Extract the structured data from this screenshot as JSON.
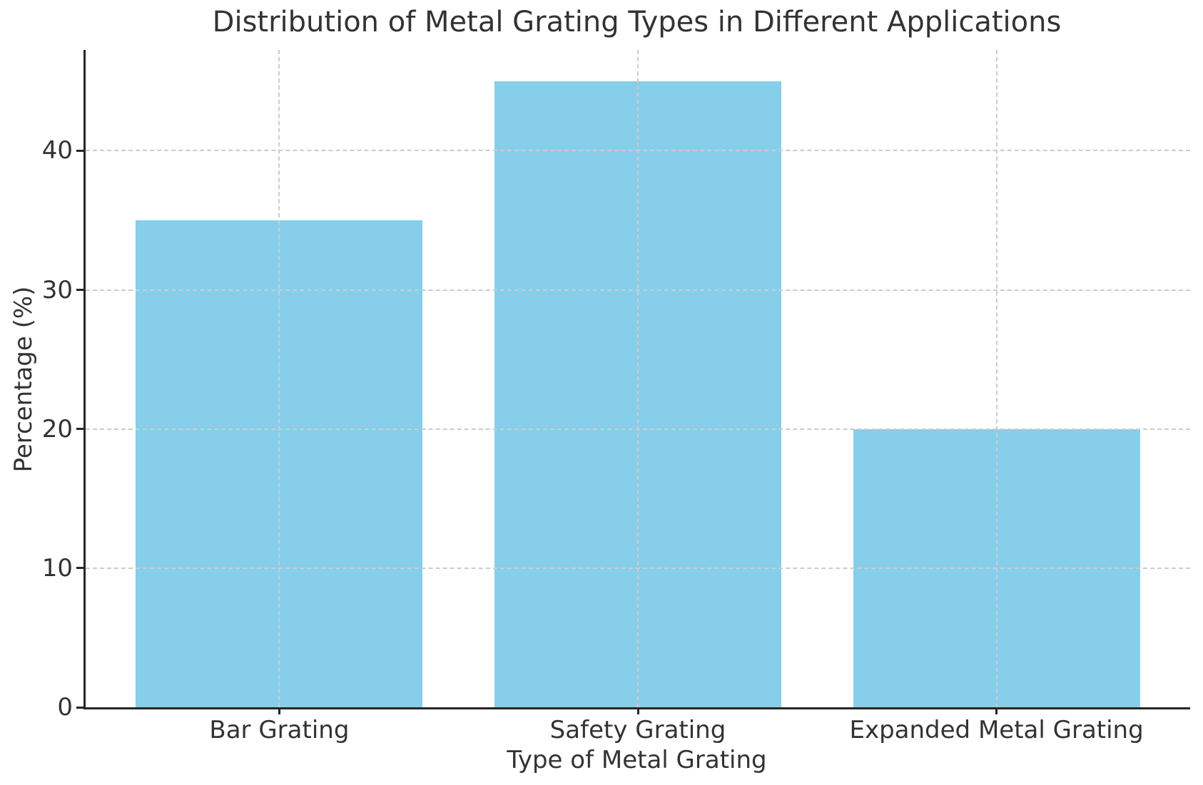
{
  "chart_data": {
    "type": "bar",
    "title": "Distribution of Metal Grating Types in Different Applications",
    "categories": [
      "Bar Grating",
      "Safety Grating",
      "Expanded Metal Grating"
    ],
    "values": [
      35,
      45,
      20
    ],
    "xlabel": "Type of Metal Grating",
    "ylabel": "Percentage (%)",
    "ylim": [
      0,
      47.25
    ],
    "xlim": [
      -0.54,
      2.54
    ],
    "yticks": [
      0,
      10,
      20,
      30,
      40
    ],
    "bar_width": 0.8,
    "bar_color": "#87CEEB",
    "grid": {
      "axis": "both",
      "style": "dashed",
      "color": "#cccccc",
      "drawn_above_bars": true
    },
    "spine_color": "#262626",
    "text_color": "#333333",
    "legend": "none"
  }
}
